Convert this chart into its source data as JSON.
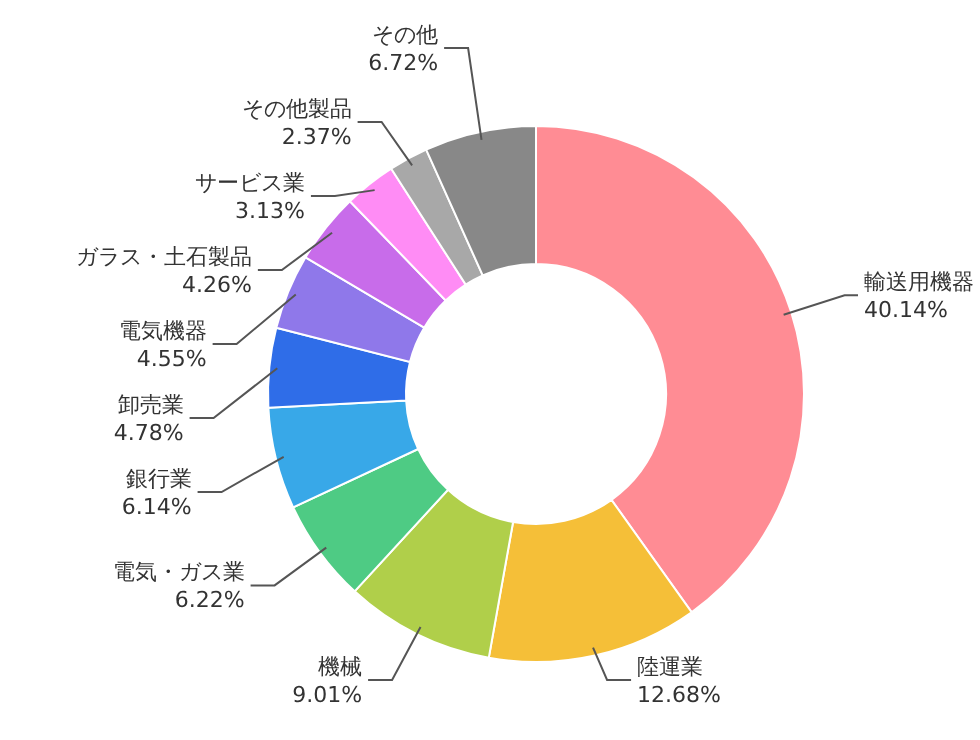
{
  "chart_data": {
    "type": "donut",
    "categories": [
      "輸送用機器",
      "陸運業",
      "機械",
      "電気・ガス業",
      "銀行業",
      "卸売業",
      "電気機器",
      "ガラス・土石製品",
      "サービス業",
      "その他製品",
      "その他"
    ],
    "values": [
      40.14,
      12.68,
      9.01,
      6.22,
      6.14,
      4.78,
      4.55,
      4.26,
      3.13,
      2.37,
      6.72
    ],
    "value_labels": [
      "40.14%",
      "12.68%",
      "9.01%",
      "6.22%",
      "6.14%",
      "4.78%",
      "4.55%",
      "4.26%",
      "3.13%",
      "2.37%",
      "6.72%"
    ],
    "colors": [
      "#ff8c94",
      "#f5bf38",
      "#b0cf4a",
      "#4ecb84",
      "#38a8e8",
      "#2f6de8",
      "#8f78ea",
      "#c86cea",
      "#ff8cf5",
      "#a8a8a8",
      "#888888"
    ]
  }
}
